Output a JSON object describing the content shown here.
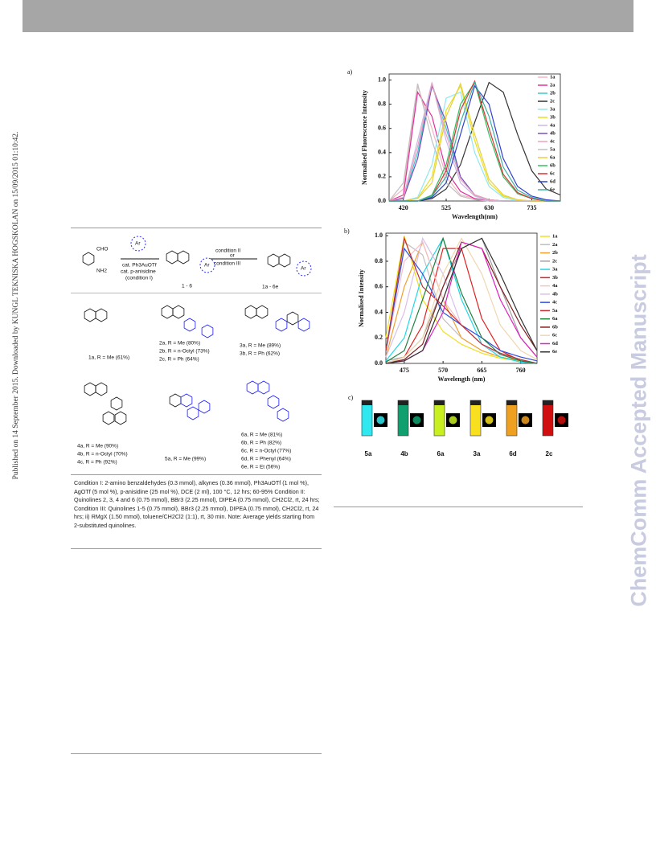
{
  "side_note": "Published on 14 September 2015. Downloaded by KUNGL TEKNISKA HOGSKOLAN on 15/09/2015 01:10:42.",
  "watermark": "ChemComm Accepted Manuscript",
  "scheme": {
    "reagents": [
      "CHO",
      "NH2",
      "Ar",
      "cat. Ph3AuOTf",
      "cat. p-anisidine",
      "(condition I)",
      "condition II",
      "or",
      "condition III",
      "1 - 6",
      "1a - 6e",
      "Ar",
      "Ar"
    ],
    "compounds": [
      "1a, R = Me (61%)",
      "2a, R = Me (80%)",
      "2b, R = n-Octyl (73%)",
      "2c, R = Ph (64%)",
      "3a, R = Me (89%)",
      "3b, R = Ph (62%)",
      "4a, R = Me (90%)",
      "4b, R = n-Octyl (70%)",
      "4c, R = Ph (92%)",
      "5a, R = Me (99%)",
      "6a, R = Me (81%)",
      "6b, R = Ph (82%)",
      "6c, R = n-Octyl (77%)",
      "6d, R = Phenyl (64%)",
      "6e, R = Et (56%)"
    ],
    "footnote": "Condition I: 2-amino benzaldehydes (0.3 mmol), alkynes (0.36 mmol), Ph3AuOTf (1 mol %), AgOTf (5 mol %), p-anisidine (25 mol %), DCE (2 ml), 100 °C, 12 hrs; 60-95% Condition II: Quinolines 2, 3, 4 and 6 (0.75 mmol), BBr3 (2.25 mmol), DIPEA (0.75 mmol), CH2Cl2, rt, 24 hrs; Condition III: Quinolines 1-5 (0.75 mmol), BBr3 (2.25 mmol), DIPEA (0.75 mmol), CH2Cl2, rt, 24 hrs; ii) RMgX (1.50 mmol), toluene/CH2Cl2 (1:1), rt, 30 min. Note: Average yields starting from 2-substituted quinolines."
  },
  "chart_data": [
    {
      "type": "line",
      "panel": "a)",
      "ylabel": "Normalised Fluorescence Intensity",
      "xlabel": "Wavelength(nm)",
      "xlim": [
        385,
        805
      ],
      "xticks": [
        420,
        525,
        630,
        735
      ],
      "ylim": [
        0,
        1.05
      ],
      "yticks": [
        {
          "value": 0,
          "label": "0.0"
        },
        0.2,
        0.4,
        0.6,
        0.8,
        {
          "value": 1,
          "label": "1.0"
        }
      ],
      "legend": "upper right",
      "x": [
        385,
        420,
        455,
        490,
        525,
        560,
        595,
        630,
        665,
        700,
        735,
        770,
        805
      ],
      "series": [
        {
          "name": "1a",
          "color": "#f4b6c2",
          "values": [
            0,
            0.1,
            0.95,
            0.6,
            0.2,
            0.05,
            0.02,
            0,
            0,
            0,
            0,
            0,
            0
          ]
        },
        {
          "name": "2a",
          "color": "#e0309a",
          "values": [
            0,
            0.05,
            0.9,
            0.7,
            0.25,
            0.08,
            0.02,
            0,
            0,
            0,
            0,
            0,
            0
          ]
        },
        {
          "name": "2b",
          "color": "#3cc8c8",
          "values": [
            0,
            0.02,
            0.4,
            0.97,
            0.6,
            0.2,
            0.05,
            0.01,
            0,
            0,
            0,
            0,
            0
          ]
        },
        {
          "name": "2c",
          "color": "#333333",
          "values": [
            0,
            0,
            0,
            0.02,
            0.1,
            0.3,
            0.65,
            0.98,
            0.9,
            0.55,
            0.25,
            0.1,
            0.05
          ]
        },
        {
          "name": "3a",
          "color": "#8fe8f0",
          "values": [
            0,
            0,
            0.03,
            0.3,
            0.85,
            0.9,
            0.4,
            0.12,
            0.03,
            0,
            0,
            0,
            0
          ]
        },
        {
          "name": "3b",
          "color": "#e6e020",
          "values": [
            0,
            0,
            0.02,
            0.2,
            0.75,
            0.95,
            0.5,
            0.15,
            0.04,
            0.01,
            0,
            0,
            0
          ]
        },
        {
          "name": "4a",
          "color": "#c8b8e8",
          "values": [
            0,
            0.03,
            0.5,
            0.98,
            0.5,
            0.15,
            0.04,
            0,
            0,
            0,
            0,
            0,
            0
          ]
        },
        {
          "name": "4b",
          "color": "#7a4fc0",
          "values": [
            0,
            0.02,
            0.35,
            0.95,
            0.65,
            0.2,
            0.05,
            0.01,
            0,
            0,
            0,
            0,
            0
          ]
        },
        {
          "name": "4c",
          "color": "#f0a0b8",
          "values": [
            0,
            0.03,
            0.45,
            0.97,
            0.55,
            0.18,
            0.05,
            0.01,
            0,
            0,
            0,
            0,
            0
          ]
        },
        {
          "name": "5a",
          "color": "#c0c0c0",
          "values": [
            0,
            0.15,
            0.97,
            0.5,
            0.15,
            0.04,
            0.01,
            0,
            0,
            0,
            0,
            0,
            0
          ]
        },
        {
          "name": "6a",
          "color": "#e8d040",
          "values": [
            0,
            0,
            0.02,
            0.15,
            0.7,
            0.97,
            0.55,
            0.18,
            0.05,
            0.01,
            0,
            0,
            0
          ]
        },
        {
          "name": "6b",
          "color": "#30c060",
          "values": [
            0,
            0,
            0,
            0.05,
            0.3,
            0.8,
            0.98,
            0.55,
            0.2,
            0.06,
            0.02,
            0,
            0
          ]
        },
        {
          "name": "6c",
          "color": "#e03030",
          "values": [
            0,
            0,
            0,
            0.04,
            0.25,
            0.75,
            0.99,
            0.6,
            0.22,
            0.07,
            0.02,
            0,
            0
          ]
        },
        {
          "name": "6d",
          "color": "#3040d0",
          "values": [
            0,
            0,
            0,
            0.03,
            0.15,
            0.55,
            0.95,
            0.8,
            0.35,
            0.12,
            0.04,
            0.01,
            0
          ]
        },
        {
          "name": "6e",
          "color": "#40b0a0",
          "values": [
            0,
            0,
            0,
            0.04,
            0.2,
            0.65,
            0.98,
            0.7,
            0.28,
            0.09,
            0.03,
            0,
            0
          ]
        }
      ]
    },
    {
      "type": "line",
      "panel": "b)",
      "ylabel": "Normalised Intensity",
      "xlabel": "Wavelength (nm)",
      "xlim": [
        430,
        800
      ],
      "xticks": [
        475,
        570,
        665,
        760
      ],
      "ylim": [
        0,
        1.02
      ],
      "yticks": [
        {
          "value": 0,
          "label": "0.0"
        },
        0.2,
        0.4,
        0.6,
        0.8,
        {
          "value": 1,
          "label": "1.0"
        }
      ],
      "legend": "right",
      "x": [
        430,
        475,
        520,
        570,
        615,
        665,
        710,
        760,
        800
      ],
      "series": [
        {
          "name": "1a",
          "color": "#f0e020",
          "values": [
            0.2,
            1,
            0.5,
            0.25,
            0.15,
            0.08,
            0.04,
            0.02,
            0
          ]
        },
        {
          "name": "2a",
          "color": "#c0c0c0",
          "values": [
            0.1,
            0.95,
            0.85,
            0.35,
            0.2,
            0.1,
            0.05,
            0.02,
            0
          ]
        },
        {
          "name": "2b",
          "color": "#f0a030",
          "values": [
            0.05,
            0.6,
            0.95,
            0.5,
            0.2,
            0.1,
            0.05,
            0.02,
            0
          ]
        },
        {
          "name": "2c",
          "color": "#a0a0a0",
          "values": [
            0.02,
            0.05,
            0.2,
            0.6,
            0.9,
            0.98,
            0.6,
            0.2,
            0.05
          ]
        },
        {
          "name": "3a",
          "color": "#20d8e8",
          "values": [
            0.02,
            0.2,
            0.7,
            0.98,
            0.5,
            0.15,
            0.05,
            0.01,
            0
          ]
        },
        {
          "name": "3b",
          "color": "#e02020",
          "values": [
            0,
            0.05,
            0.3,
            0.9,
            0.9,
            0.35,
            0.1,
            0.02,
            0
          ]
        },
        {
          "name": "4a",
          "color": "#f4c0c8",
          "values": [
            0.1,
            0.8,
            0.95,
            0.5,
            0.3,
            0.2,
            0.1,
            0.05,
            0.02
          ]
        },
        {
          "name": "4b",
          "color": "#d8c0e8",
          "values": [
            0.05,
            0.4,
            0.98,
            0.7,
            0.3,
            0.15,
            0.07,
            0.03,
            0
          ]
        },
        {
          "name": "4c",
          "color": "#3050e0",
          "values": [
            0.1,
            0.9,
            0.7,
            0.4,
            0.3,
            0.2,
            0.1,
            0.05,
            0.02
          ]
        },
        {
          "name": "5a",
          "color": "#c03030",
          "values": [
            0.1,
            0.98,
            0.6,
            0.45,
            0.3,
            0.15,
            0.08,
            0.03,
            0
          ]
        },
        {
          "name": "6a",
          "color": "#208040",
          "values": [
            0.01,
            0.1,
            0.5,
            0.98,
            0.55,
            0.2,
            0.07,
            0.02,
            0
          ]
        },
        {
          "name": "6b",
          "color": "#802020",
          "values": [
            0,
            0.03,
            0.15,
            0.6,
            0.95,
            0.9,
            0.6,
            0.3,
            0.1
          ]
        },
        {
          "name": "6c",
          "color": "#f0d8b0",
          "values": [
            0,
            0.05,
            0.2,
            0.7,
            0.98,
            0.7,
            0.3,
            0.1,
            0.03
          ]
        },
        {
          "name": "6d",
          "color": "#e020c0",
          "values": [
            0,
            0.02,
            0.1,
            0.4,
            0.95,
            0.9,
            0.5,
            0.2,
            0.05
          ]
        },
        {
          "name": "6e",
          "color": "#303030",
          "values": [
            0,
            0.02,
            0.1,
            0.5,
            0.9,
            0.98,
            0.7,
            0.35,
            0.1
          ]
        }
      ]
    }
  ],
  "figure_c": {
    "panel": "c)",
    "samples": [
      {
        "name": "5a",
        "color": "#30e8f0"
      },
      {
        "name": "4b",
        "color": "#10a070"
      },
      {
        "name": "6a",
        "color": "#c8f020"
      },
      {
        "name": "3a",
        "color": "#f8e020"
      },
      {
        "name": "6d",
        "color": "#f0a020"
      },
      {
        "name": "2c",
        "color": "#d01010"
      }
    ]
  }
}
